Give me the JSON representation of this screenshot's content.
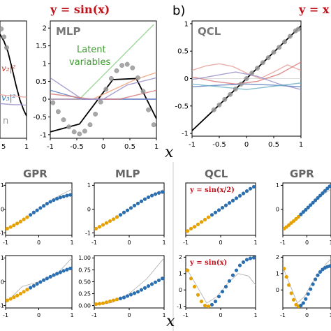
{
  "headers": {
    "top_left": "y = sin(x)",
    "top_right": "y = x",
    "panel_b": "b)",
    "x_symbol_top": "x",
    "x_symbol_bottom": "x"
  },
  "sections": [
    "GPR",
    "MLP",
    "QCL",
    "GPR"
  ],
  "chart_data": [
    {
      "id": "top-left-partial",
      "type": "line",
      "xlim": [
        -1.0,
        1.0
      ],
      "x_ticks": [
        1.0
      ],
      "x_tick_labels_visible": [
        "5",
        "1.0"
      ],
      "annotations": [
        "v₂|²",
        "v₃|²",
        "n"
      ],
      "series": [
        {
          "color": "#000000",
          "x": [
            -1.0,
            -0.7,
            -0.4,
            -0.1,
            0.2,
            0.5,
            0.8,
            1.0
          ],
          "y": [
            0.85,
            0.72,
            0.52,
            0.22,
            -0.1,
            -0.38,
            -0.58,
            -0.68
          ]
        },
        {
          "color": "#e8a09a",
          "x": [
            -1.0,
            -0.5,
            0.0,
            0.5,
            1.0
          ],
          "y": [
            -0.28,
            -0.3,
            -0.3,
            -0.32,
            -0.33
          ]
        },
        {
          "color": "#9b91c9",
          "x": [
            -1.0,
            -0.5,
            0.0,
            0.5,
            1.0
          ],
          "y": [
            -0.45,
            -0.46,
            -0.47,
            -0.47,
            -0.48
          ]
        }
      ],
      "points": {
        "x": [
          -0.9,
          -0.7,
          -0.5
        ],
        "y": [
          0.95,
          0.8,
          0.6
        ]
      }
    },
    {
      "id": "mlp-top",
      "type": "line",
      "title": "MLP",
      "annotations": [
        "Latent",
        "variables"
      ],
      "xlim": [
        -1.0,
        1.0
      ],
      "ylim": [
        -1.1,
        2.2
      ],
      "x_ticks": [
        -1.0,
        -0.5,
        0.0,
        0.5,
        1.0
      ],
      "y_ticks": [
        -1.0,
        -0.5,
        0.0,
        0.5,
        1.0,
        1.5,
        2.0
      ],
      "series": [
        {
          "color": "#000000",
          "x": [
            -1.0,
            -0.45,
            0.18,
            0.62,
            1.0
          ],
          "y": [
            -0.92,
            -0.7,
            0.55,
            0.58,
            -0.55
          ]
        },
        {
          "color": "#8fd18a",
          "x": [
            -1.0,
            -0.45,
            0.95
          ],
          "y": [
            0.0,
            0.0,
            2.1
          ]
        },
        {
          "color": "#f0a17a",
          "x": [
            -1.0,
            -0.2,
            0.6,
            1.0
          ],
          "y": [
            0.0,
            0.0,
            0.55,
            0.75
          ]
        },
        {
          "color": "#9b91c9",
          "x": [
            -1.0,
            -0.4,
            0.0,
            1.0
          ],
          "y": [
            0.6,
            0.0,
            0.0,
            0.0
          ]
        },
        {
          "color": "#5c7dbd",
          "x": [
            -1.0,
            -0.4,
            0.0,
            1.0
          ],
          "y": [
            0.25,
            0.0,
            0.0,
            0.0
          ]
        },
        {
          "color": "#d97a7a",
          "x": [
            -1.0,
            -0.2,
            0.3,
            1.0
          ],
          "y": [
            0.15,
            0.0,
            0.0,
            0.25
          ]
        },
        {
          "color": "#9b91c9",
          "x": [
            -1.0,
            0.0,
            0.45,
            1.0
          ],
          "y": [
            0.0,
            0.0,
            0.4,
            0.6
          ]
        }
      ],
      "points": {
        "x": [
          -0.95,
          -0.85,
          -0.75,
          -0.65,
          -0.55,
          -0.45,
          -0.35,
          -0.25,
          -0.15,
          -0.05,
          0.05,
          0.15,
          0.25,
          0.35,
          0.45,
          0.55,
          0.65,
          0.75,
          0.85,
          0.95
        ],
        "y": [
          -0.1,
          -0.35,
          -0.58,
          -0.78,
          -0.92,
          -0.98,
          -0.9,
          -0.72,
          -0.42,
          -0.08,
          0.28,
          0.58,
          0.8,
          0.95,
          0.98,
          0.88,
          0.6,
          0.22,
          -0.3,
          -0.72
        ]
      }
    },
    {
      "id": "qcl-top",
      "type": "line",
      "title": "QCL",
      "xlim": [
        -1.0,
        1.0
      ],
      "ylim": [
        -1.05,
        1.05
      ],
      "x_ticks": [
        -1.0,
        -0.5,
        0.0,
        0.5,
        1.0
      ],
      "y_ticks": [
        -1.0,
        -0.5,
        0.0,
        0.5,
        1.0
      ],
      "series": [
        {
          "color": "#000000",
          "x": [
            -1.0,
            -0.5,
            0.0,
            0.5,
            1.0
          ],
          "y": [
            -0.95,
            -0.48,
            0.0,
            0.48,
            0.96
          ]
        },
        {
          "color": "#e8a09a",
          "x": [
            -1.0,
            -0.75,
            -0.5,
            -0.25,
            0.0,
            0.25,
            0.5,
            0.75,
            1.0
          ],
          "y": [
            0.15,
            0.23,
            0.27,
            0.22,
            0.1,
            0.0,
            0.12,
            0.25,
            0.15
          ]
        },
        {
          "color": "#d97a7a",
          "x": [
            -1.0,
            -0.6,
            -0.2,
            0.2,
            0.6,
            1.0
          ],
          "y": [
            0.03,
            -0.05,
            -0.1,
            -0.05,
            0.08,
            0.3
          ]
        },
        {
          "color": "#9b91c9",
          "x": [
            -1.0,
            -0.6,
            -0.2,
            0.2,
            0.6,
            1.0
          ],
          "y": [
            -0.02,
            0.05,
            0.12,
            0.04,
            -0.1,
            -0.2
          ]
        },
        {
          "color": "#5c7dbd",
          "x": [
            -1.0,
            -0.5,
            0.0,
            0.5,
            1.0
          ],
          "y": [
            -0.15,
            -0.12,
            -0.1,
            -0.12,
            -0.15
          ]
        },
        {
          "color": "#6fb3c7",
          "x": [
            -1.0,
            -0.5,
            0.0,
            0.5,
            1.0
          ],
          "y": [
            -0.1,
            -0.15,
            -0.2,
            -0.14,
            -0.08
          ]
        }
      ],
      "points": {
        "x": [
          -0.6,
          -0.5,
          -0.4,
          -0.3,
          -0.2,
          -0.1,
          0.0,
          0.1,
          0.2,
          0.3,
          0.4,
          0.5,
          0.6,
          0.7,
          0.8,
          0.9,
          0.95
        ],
        "y": [
          -0.57,
          -0.48,
          -0.38,
          -0.29,
          -0.19,
          -0.1,
          0.0,
          0.1,
          0.19,
          0.29,
          0.38,
          0.48,
          0.57,
          0.67,
          0.77,
          0.87,
          0.9
        ]
      }
    },
    {
      "id": "gpr-1",
      "type": "scatter",
      "title": "GPR",
      "xlim": [
        -1.0,
        1.0
      ],
      "ylim": [
        -1.1,
        1.1
      ],
      "x_ticks": [
        -1,
        0,
        1
      ],
      "y_ticks": [
        -1,
        0,
        1
      ],
      "points_train": {
        "x": [
          -0.95,
          -0.85,
          -0.75,
          -0.65,
          -0.55,
          -0.45,
          -0.35
        ],
        "y": [
          -0.82,
          -0.75,
          -0.68,
          -0.6,
          -0.52,
          -0.43,
          -0.34
        ]
      },
      "points_pred": {
        "x": [
          -0.25,
          -0.15,
          -0.05,
          0.05,
          0.15,
          0.25,
          0.35,
          0.45,
          0.55,
          0.65,
          0.75,
          0.85,
          0.95
        ],
        "y": [
          -0.24,
          -0.14,
          -0.05,
          0.05,
          0.14,
          0.23,
          0.31,
          0.38,
          0.44,
          0.49,
          0.53,
          0.57,
          0.6
        ]
      },
      "true_curve": {
        "x": [
          -1.0,
          -0.5,
          0.0,
          0.5,
          1.0
        ],
        "y": [
          -0.84,
          -0.48,
          0.0,
          0.48,
          0.84
        ]
      }
    },
    {
      "id": "mlp-1",
      "type": "scatter",
      "title": "MLP",
      "xlim": [
        -1.0,
        1.0
      ],
      "ylim": [
        -1.1,
        1.1
      ],
      "x_ticks": [
        -1,
        0,
        1
      ],
      "y_ticks": [
        -1,
        0,
        1
      ],
      "points_train": {
        "x": [
          -0.95,
          -0.85,
          -0.75,
          -0.65,
          -0.55,
          -0.45,
          -0.35
        ],
        "y": [
          -0.82,
          -0.74,
          -0.66,
          -0.58,
          -0.5,
          -0.42,
          -0.33
        ]
      },
      "points_pred": {
        "x": [
          -0.25,
          -0.15,
          -0.05,
          0.05,
          0.15,
          0.25,
          0.35,
          0.45,
          0.55,
          0.65,
          0.75,
          0.85,
          0.95
        ],
        "y": [
          -0.24,
          -0.14,
          -0.05,
          0.05,
          0.15,
          0.24,
          0.33,
          0.42,
          0.5,
          0.57,
          0.63,
          0.68,
          0.72
        ]
      },
      "true_curve": {
        "x": [
          -1.0,
          -0.5,
          0.0,
          0.5,
          1.0
        ],
        "y": [
          -0.84,
          -0.48,
          0.0,
          0.48,
          0.84
        ]
      }
    },
    {
      "id": "qcl-1",
      "type": "scatter",
      "title": "QCL",
      "annotation": "y = sin(x/2)",
      "xlim": [
        -1.0,
        1.0
      ],
      "ylim": [
        -0.55,
        0.55
      ],
      "x_ticks": [
        -1,
        0,
        1
      ],
      "points_train": {
        "x": [
          -0.95,
          -0.85,
          -0.75,
          -0.65,
          -0.55,
          -0.45,
          -0.35
        ],
        "y": [
          -0.46,
          -0.41,
          -0.37,
          -0.32,
          -0.27,
          -0.22,
          -0.17
        ]
      },
      "points_pred": {
        "x": [
          -0.25,
          -0.15,
          -0.05,
          0.05,
          0.15,
          0.25,
          0.35,
          0.45,
          0.55,
          0.65,
          0.75,
          0.85,
          0.95
        ],
        "y": [
          -0.12,
          -0.07,
          -0.02,
          0.03,
          0.08,
          0.13,
          0.18,
          0.23,
          0.28,
          0.33,
          0.38,
          0.43,
          0.47
        ]
      },
      "true_curve": {
        "x": [
          -1.0,
          -0.5,
          0.0,
          0.5,
          1.0
        ],
        "y": [
          -0.48,
          -0.25,
          0.0,
          0.25,
          0.48
        ]
      }
    },
    {
      "id": "gpr-2",
      "type": "scatter",
      "title": "GPR",
      "xlim": [
        -1.0,
        1.0
      ],
      "ylim": [
        -1.1,
        1.1
      ],
      "x_ticks": [
        -1,
        0,
        1
      ],
      "y_ticks": [
        0,
        1
      ],
      "points_train": {
        "x": [
          -0.95,
          -0.85,
          -0.75,
          -0.65,
          -0.55,
          -0.45,
          -0.35
        ],
        "y": [
          -0.82,
          -0.75,
          -0.67,
          -0.58,
          -0.5,
          -0.41,
          -0.32
        ]
      },
      "points_pred": {
        "x": [
          -0.25,
          -0.15,
          -0.05,
          0.05,
          0.15,
          0.25,
          0.35,
          0.45,
          0.55,
          0.65,
          0.75,
          0.85,
          0.95
        ],
        "y": [
          -0.22,
          -0.12,
          -0.03,
          0.07,
          0.17,
          0.27,
          0.37,
          0.47,
          0.57,
          0.67,
          0.77,
          0.87,
          0.96
        ]
      },
      "true_curve": {
        "x": [
          -1.0,
          -0.5,
          0.0,
          0.5,
          1.0
        ],
        "y": [
          -0.84,
          -0.48,
          0.0,
          0.48,
          0.84
        ]
      }
    },
    {
      "id": "gpr-3",
      "type": "scatter",
      "xlim": [
        -1.0,
        1.0
      ],
      "ylim": [
        -1.1,
        1.1
      ],
      "x_ticks": [
        -1,
        0,
        1
      ],
      "y_ticks": [
        -1,
        0,
        1
      ],
      "points_train": {
        "x": [
          -0.95,
          -0.85,
          -0.75,
          -0.65,
          -0.55,
          -0.45,
          -0.35
        ],
        "y": [
          -0.78,
          -0.72,
          -0.65,
          -0.58,
          -0.5,
          -0.42,
          -0.33
        ]
      },
      "points_pred": {
        "x": [
          -0.25,
          -0.15,
          -0.05,
          0.05,
          0.15,
          0.25,
          0.35,
          0.45,
          0.55,
          0.65,
          0.75,
          0.85,
          0.95
        ],
        "y": [
          -0.25,
          -0.17,
          -0.09,
          -0.01,
          0.07,
          0.14,
          0.21,
          0.28,
          0.34,
          0.4,
          0.46,
          0.51,
          0.56
        ]
      },
      "true_curve": {
        "x": [
          -1.0,
          -0.5,
          0.0,
          0.5,
          1.0
        ],
        "y": [
          -0.9,
          -0.2,
          0.0,
          0.25,
          1.0
        ]
      }
    },
    {
      "id": "mlp-2",
      "type": "scatter",
      "xlim": [
        -1.0,
        1.0
      ],
      "ylim": [
        -0.05,
        1.05
      ],
      "x_ticks": [
        -1,
        0,
        1
      ],
      "y_ticks": [
        0.0,
        0.25,
        0.5,
        0.75,
        1.0
      ],
      "y_tick_labels": [
        "0.00",
        "0.25",
        "0.50",
        "0.75",
        "1.00"
      ],
      "points_train": {
        "x": [
          -0.95,
          -0.85,
          -0.75,
          -0.65,
          -0.55,
          -0.45,
          -0.35
        ],
        "y": [
          0.03,
          0.04,
          0.05,
          0.07,
          0.09,
          0.11,
          0.13
        ]
      },
      "points_pred": {
        "x": [
          -0.25,
          -0.15,
          -0.05,
          0.05,
          0.15,
          0.25,
          0.35,
          0.45,
          0.55,
          0.65,
          0.75,
          0.85,
          0.95
        ],
        "y": [
          0.15,
          0.17,
          0.2,
          0.23,
          0.26,
          0.29,
          0.33,
          0.37,
          0.41,
          0.45,
          0.49,
          0.53,
          0.57
        ]
      },
      "true_curve": {
        "x": [
          -1.0,
          -0.5,
          0.0,
          0.5,
          1.0
        ],
        "y": [
          0.0,
          0.06,
          0.25,
          0.56,
          1.0
        ]
      }
    },
    {
      "id": "qcl-2",
      "type": "scatter",
      "annotation": "y = sin(x)",
      "xlim": [
        -1.0,
        1.0
      ],
      "ylim": [
        -1.1,
        2.1
      ],
      "x_ticks": [
        -1,
        0,
        1
      ],
      "y_ticks": [
        -1,
        0,
        1,
        2
      ],
      "points_train": {
        "x": [
          -0.95,
          -0.85,
          -0.75,
          -0.65,
          -0.55,
          -0.45,
          -0.35
        ],
        "y": [
          1.2,
          0.7,
          0.2,
          -0.3,
          -0.7,
          -0.95,
          -1.0
        ]
      },
      "points_pred": {
        "x": [
          -0.25,
          -0.15,
          -0.05,
          0.05,
          0.15,
          0.25,
          0.35,
          0.45,
          0.55,
          0.65,
          0.75,
          0.85,
          0.95
        ],
        "y": [
          -0.9,
          -0.7,
          -0.4,
          -0.1,
          0.2,
          0.55,
          0.9,
          1.2,
          1.5,
          1.7,
          1.85,
          1.93,
          1.97
        ]
      },
      "true_curve": {
        "x": [
          -1.0,
          -0.7,
          -0.4,
          -0.1,
          0.2,
          0.5,
          0.8,
          1.0
        ],
        "y": [
          1.4,
          0.3,
          -0.8,
          -0.4,
          0.4,
          1.0,
          0.85,
          0.3
        ]
      }
    },
    {
      "id": "gpr-4",
      "type": "scatter",
      "xlim": [
        -1.0,
        1.0
      ],
      "ylim": [
        -1.1,
        2.1
      ],
      "x_ticks": [
        -1,
        0,
        1
      ],
      "y_ticks": [
        0,
        1,
        2
      ],
      "points_train": {
        "x": [
          -0.95,
          -0.85,
          -0.75,
          -0.65,
          -0.55,
          -0.45,
          -0.35
        ],
        "y": [
          1.3,
          0.8,
          0.3,
          -0.2,
          -0.6,
          -0.9,
          -1.0
        ]
      },
      "points_pred": {
        "x": [
          -0.25,
          -0.15,
          -0.05,
          0.05,
          0.15,
          0.25,
          0.35,
          0.45,
          0.55,
          0.65,
          0.75,
          0.85,
          0.95
        ],
        "y": [
          -0.95,
          -0.8,
          -0.55,
          -0.25,
          0.05,
          0.35,
          0.65,
          0.9,
          1.1,
          1.25,
          1.35,
          1.42,
          1.46
        ]
      },
      "true_curve": {
        "x": [
          -1.0,
          -0.7,
          -0.4,
          -0.1,
          0.2,
          0.5,
          0.8,
          1.0
        ],
        "y": [
          1.4,
          0.3,
          -0.8,
          -0.4,
          0.4,
          1.0,
          1.6,
          1.9
        ]
      }
    }
  ]
}
